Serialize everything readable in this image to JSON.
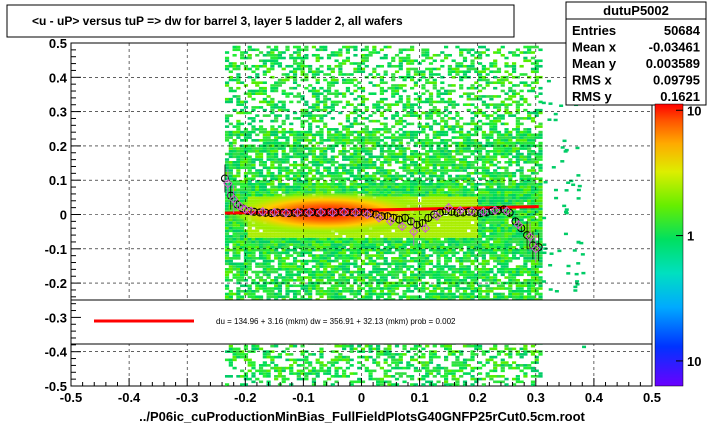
{
  "chart_data": {
    "type": "scatter",
    "title": "<u - uP>       versus  tuP =>  dw for barrel 3, layer 5 ladder 2, all wafers",
    "xlabel": "../P06ic_cuProductionMinBias_FullFieldPlotsG40GNFP25rCut0.5cm.root",
    "ylabel": "",
    "xlim": [
      -0.5,
      0.5
    ],
    "ylim": [
      -0.5,
      0.5
    ],
    "x_ticks": [
      "-0.5",
      "-0.4",
      "-0.3",
      "-0.2",
      "-0.1",
      "0",
      "0.1",
      "0.2",
      "0.3",
      "0.4",
      "0.5"
    ],
    "y_ticks": [
      "-0.5",
      "-0.4",
      "-0.3",
      "-0.2",
      "-0.1",
      "0",
      "0.1",
      "0.2",
      "0.3",
      "0.4",
      "0.5"
    ],
    "grid": true,
    "colorbar": {
      "labels": [
        "10",
        "1",
        "10"
      ],
      "label_values": [
        10,
        1,
        0.1
      ]
    },
    "stats": {
      "name": "dutuP5002",
      "rows": [
        {
          "label": "Entries",
          "value": "50684"
        },
        {
          "label": "Mean x",
          "value": "-0.03461"
        },
        {
          "label": "Mean y",
          "value": "0.003589"
        },
        {
          "label": "RMS x",
          "value": "0.09795"
        },
        {
          "label": "RMS y",
          "value": "0.1621"
        }
      ]
    },
    "fit": {
      "text": "du =  134.96 +   3.16 (mkm) dw =  356.91 + 32.13 (mkm) prob = 0.002",
      "color": "#ff0000",
      "line": [
        [
          -0.235,
          0.004
        ],
        [
          0.305,
          0.023
        ]
      ]
    },
    "series": [
      {
        "marker": "open-circle",
        "color": "#000000",
        "points": [
          [
            -0.235,
            0.105
          ],
          [
            -0.225,
            0.055
          ],
          [
            -0.215,
            0.03
          ],
          [
            -0.205,
            0.018
          ],
          [
            -0.195,
            0.01
          ],
          [
            -0.185,
            0.008
          ],
          [
            -0.175,
            0.006
          ],
          [
            -0.165,
            0.005
          ],
          [
            -0.155,
            0.004
          ],
          [
            -0.145,
            0.006
          ],
          [
            -0.135,
            0.005
          ],
          [
            -0.125,
            0.004
          ],
          [
            -0.115,
            0.005
          ],
          [
            -0.105,
            0.006
          ],
          [
            -0.095,
            0.005
          ],
          [
            -0.085,
            0.007
          ],
          [
            -0.075,
            0.005
          ],
          [
            -0.065,
            0.006
          ],
          [
            -0.055,
            0.007
          ],
          [
            -0.045,
            0.006
          ],
          [
            -0.035,
            0.008
          ],
          [
            -0.025,
            0.007
          ],
          [
            -0.015,
            0.006
          ],
          [
            -0.005,
            0.007
          ],
          [
            0.005,
            0.006
          ],
          [
            0.015,
            0.004
          ],
          [
            0.025,
            0.0
          ],
          [
            0.035,
            -0.005
          ],
          [
            0.045,
            -0.005
          ],
          [
            0.055,
            -0.01
          ],
          [
            0.065,
            -0.015
          ],
          [
            0.075,
            -0.01
          ],
          [
            0.085,
            -0.02
          ],
          [
            0.095,
            -0.03
          ],
          [
            0.105,
            -0.025
          ],
          [
            0.115,
            -0.01
          ],
          [
            0.125,
            0.0
          ],
          [
            0.135,
            0.005
          ],
          [
            0.145,
            0.01
          ],
          [
            0.155,
            0.008
          ],
          [
            0.165,
            0.005
          ],
          [
            0.175,
            0.006
          ],
          [
            0.185,
            0.008
          ],
          [
            0.195,
            0.005
          ],
          [
            0.205,
            0.004
          ],
          [
            0.215,
            0.006
          ],
          [
            0.225,
            0.01
          ],
          [
            0.235,
            0.012
          ],
          [
            0.245,
            0.015
          ],
          [
            0.255,
            0.005
          ],
          [
            0.265,
            -0.02
          ],
          [
            0.275,
            -0.04
          ],
          [
            0.285,
            -0.06
          ],
          [
            0.295,
            -0.09
          ],
          [
            0.305,
            -0.095
          ]
        ]
      },
      {
        "marker": "open-diamond",
        "color": "#d060d0",
        "points": [
          [
            -0.23,
            0.09
          ],
          [
            -0.22,
            0.045
          ],
          [
            -0.21,
            0.025
          ],
          [
            -0.2,
            0.015
          ],
          [
            -0.19,
            0.01
          ],
          [
            -0.17,
            0.008
          ],
          [
            -0.15,
            0.006
          ],
          [
            -0.13,
            0.005
          ],
          [
            -0.11,
            0.006
          ],
          [
            -0.09,
            0.006
          ],
          [
            -0.07,
            0.007
          ],
          [
            -0.05,
            0.006
          ],
          [
            -0.03,
            0.007
          ],
          [
            -0.01,
            0.006
          ],
          [
            0.01,
            0.0
          ],
          [
            0.03,
            -0.01
          ],
          [
            0.05,
            -0.02
          ],
          [
            0.07,
            -0.035
          ],
          [
            0.09,
            -0.05
          ],
          [
            0.11,
            -0.04
          ],
          [
            0.13,
            -0.005
          ],
          [
            0.15,
            0.02
          ],
          [
            0.17,
            0.012
          ],
          [
            0.19,
            0.01
          ],
          [
            0.21,
            0.008
          ],
          [
            0.23,
            0.012
          ],
          [
            0.25,
            0.01
          ],
          [
            0.27,
            -0.03
          ],
          [
            0.29,
            -0.065
          ],
          [
            0.3,
            -0.1
          ]
        ]
      }
    ]
  }
}
